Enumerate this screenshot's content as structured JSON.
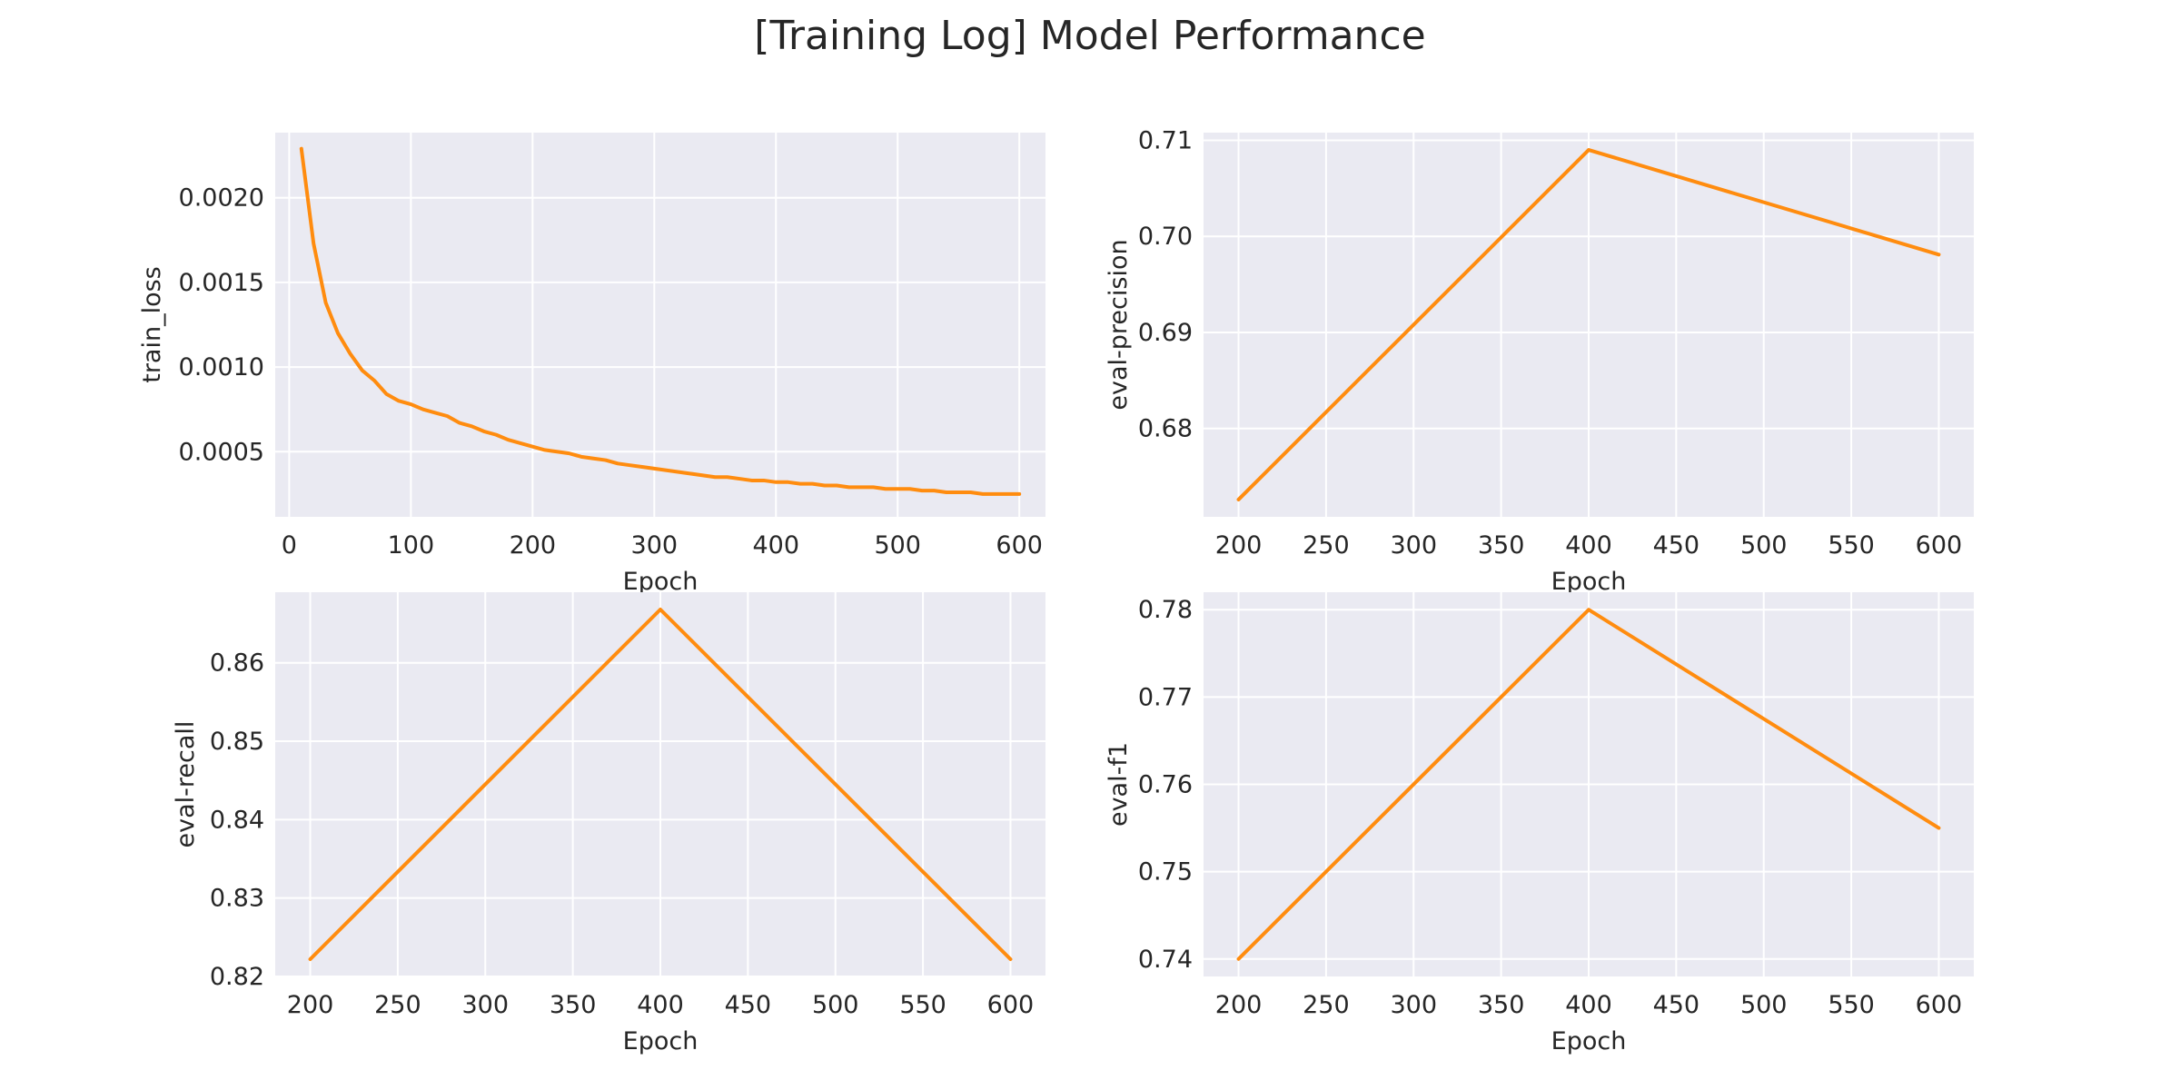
{
  "title": "[Training Log] Model Performance",
  "line_color": "#ff8c0f",
  "background_color": "#eaeaf2",
  "grid_color": "#ffffff",
  "chart_data": [
    {
      "type": "line",
      "position": "top-left",
      "xlabel": "Epoch",
      "ylabel": "train_loss",
      "grid": true,
      "xlim": [
        -11.5,
        621.5
      ],
      "ylim": [
        0.000115,
        0.002385
      ],
      "xticks": [
        0,
        100,
        200,
        300,
        400,
        500,
        600
      ],
      "xtick_labels": [
        "0",
        "100",
        "200",
        "300",
        "400",
        "500",
        "600"
      ],
      "yticks": [
        0.0005,
        0.001,
        0.0015,
        0.002
      ],
      "ytick_labels": [
        "0.0005",
        "0.0010",
        "0.0015",
        "0.0020"
      ],
      "series": [
        {
          "x": [
            10,
            20,
            30,
            40,
            50,
            60,
            70,
            80,
            90,
            100,
            110,
            120,
            130,
            140,
            150,
            160,
            170,
            180,
            190,
            200,
            210,
            220,
            230,
            240,
            250,
            260,
            270,
            280,
            290,
            300,
            310,
            320,
            330,
            340,
            350,
            360,
            370,
            380,
            390,
            400,
            410,
            420,
            430,
            440,
            450,
            460,
            470,
            480,
            490,
            500,
            510,
            520,
            530,
            540,
            550,
            560,
            570,
            580,
            590,
            600
          ],
          "y": [
            0.00229,
            0.00173,
            0.00138,
            0.0012,
            0.00108,
            0.00098,
            0.00092,
            0.00084,
            0.0008,
            0.00078,
            0.00075,
            0.00073,
            0.00071,
            0.00067,
            0.00065,
            0.00062,
            0.0006,
            0.00057,
            0.00055,
            0.00053,
            0.00051,
            0.0005,
            0.00049,
            0.00047,
            0.00046,
            0.00045,
            0.00043,
            0.00042,
            0.00041,
            0.0004,
            0.00039,
            0.00038,
            0.00037,
            0.00036,
            0.00035,
            0.00035,
            0.00034,
            0.00033,
            0.00033,
            0.00032,
            0.00032,
            0.00031,
            0.00031,
            0.0003,
            0.0003,
            0.00029,
            0.00029,
            0.00029,
            0.00028,
            0.00028,
            0.00028,
            0.00027,
            0.00027,
            0.00026,
            0.00026,
            0.00026,
            0.00025,
            0.00025,
            0.00025,
            0.00025
          ]
        }
      ]
    },
    {
      "type": "line",
      "position": "top-right",
      "xlabel": "Epoch",
      "ylabel": "eval-precision",
      "grid": true,
      "xlim": [
        180,
        620
      ],
      "ylim": [
        0.6708,
        0.7108
      ],
      "xticks": [
        200,
        250,
        300,
        350,
        400,
        450,
        500,
        550,
        600
      ],
      "xtick_labels": [
        "200",
        "250",
        "300",
        "350",
        "400",
        "450",
        "500",
        "550",
        "600"
      ],
      "yticks": [
        0.68,
        0.69,
        0.7,
        0.71
      ],
      "ytick_labels": [
        "0.68",
        "0.69",
        "0.70",
        "0.71"
      ],
      "series": [
        {
          "x": [
            200,
            400,
            600
          ],
          "y": [
            0.6726,
            0.709,
            0.6981
          ]
        }
      ]
    },
    {
      "type": "line",
      "position": "bottom-left",
      "xlabel": "Epoch",
      "ylabel": "eval-recall",
      "grid": true,
      "xlim": [
        180,
        620
      ],
      "ylim": [
        0.82,
        0.869
      ],
      "xticks": [
        200,
        250,
        300,
        350,
        400,
        450,
        500,
        550,
        600
      ],
      "xtick_labels": [
        "200",
        "250",
        "300",
        "350",
        "400",
        "450",
        "500",
        "550",
        "600"
      ],
      "yticks": [
        0.82,
        0.83,
        0.84,
        0.85,
        0.86
      ],
      "ytick_labels": [
        "0.82",
        "0.83",
        "0.84",
        "0.85",
        "0.86"
      ],
      "series": [
        {
          "x": [
            200,
            400,
            600
          ],
          "y": [
            0.8222,
            0.8668,
            0.8222
          ]
        }
      ]
    },
    {
      "type": "line",
      "position": "bottom-right",
      "xlabel": "Epoch",
      "ylabel": "eval-f1",
      "grid": true,
      "xlim": [
        180,
        620
      ],
      "ylim": [
        0.738,
        0.782
      ],
      "xticks": [
        200,
        250,
        300,
        350,
        400,
        450,
        500,
        550,
        600
      ],
      "xtick_labels": [
        "200",
        "250",
        "300",
        "350",
        "400",
        "450",
        "500",
        "550",
        "600"
      ],
      "yticks": [
        0.74,
        0.75,
        0.76,
        0.77,
        0.78
      ],
      "ytick_labels": [
        "0.74",
        "0.75",
        "0.76",
        "0.77",
        "0.78"
      ],
      "series": [
        {
          "x": [
            200,
            400,
            600
          ],
          "y": [
            0.74,
            0.78,
            0.755
          ]
        }
      ]
    }
  ]
}
